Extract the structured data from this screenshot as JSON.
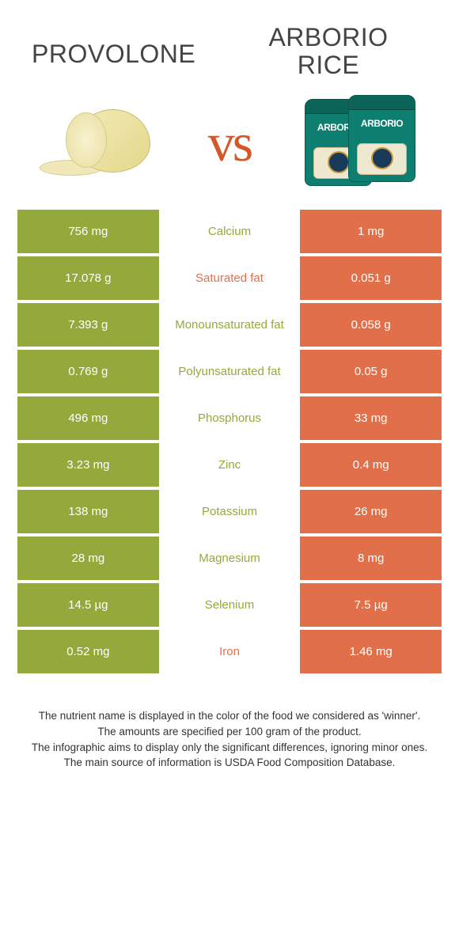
{
  "header": {
    "left_title": "Provolone",
    "right_title_line1": "Arborio",
    "right_title_line2": "rice"
  },
  "vs": "vs",
  "bag_label": "ARBORIO",
  "colors": {
    "left": "#94a93c",
    "right": "#e1704a",
    "vs": "#d35728"
  },
  "rows": [
    {
      "left": "756 mg",
      "label": "Calcium",
      "right": "1 mg",
      "winner": "left"
    },
    {
      "left": "17.078 g",
      "label": "Saturated fat",
      "right": "0.051 g",
      "winner": "right"
    },
    {
      "left": "7.393 g",
      "label": "Monounsaturated fat",
      "right": "0.058 g",
      "winner": "left"
    },
    {
      "left": "0.769 g",
      "label": "Polyunsaturated fat",
      "right": "0.05 g",
      "winner": "left"
    },
    {
      "left": "496 mg",
      "label": "Phosphorus",
      "right": "33 mg",
      "winner": "left"
    },
    {
      "left": "3.23 mg",
      "label": "Zinc",
      "right": "0.4 mg",
      "winner": "left"
    },
    {
      "left": "138 mg",
      "label": "Potassium",
      "right": "26 mg",
      "winner": "left"
    },
    {
      "left": "28 mg",
      "label": "Magnesium",
      "right": "8 mg",
      "winner": "left"
    },
    {
      "left": "14.5 µg",
      "label": "Selenium",
      "right": "7.5 µg",
      "winner": "left"
    },
    {
      "left": "0.52 mg",
      "label": "Iron",
      "right": "1.46 mg",
      "winner": "right"
    }
  ],
  "footer": {
    "line1": "The nutrient name is displayed in the color of the food we considered as 'winner'.",
    "line2": "The amounts are specified per 100 gram of the product.",
    "line3": "The infographic aims to display only the significant differences, ignoring minor ones.",
    "line4": "The main source of information is USDA Food Composition Database."
  }
}
